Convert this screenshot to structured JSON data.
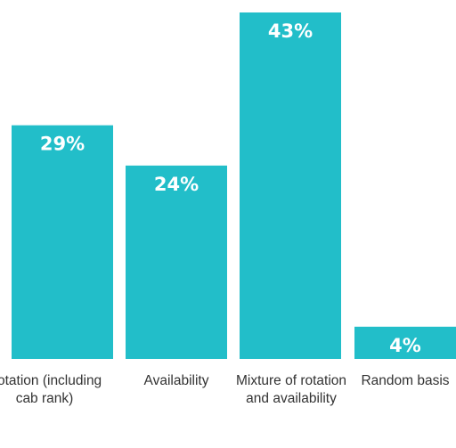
{
  "chart_data": {
    "type": "bar",
    "categories": [
      "Rotation (including cab rank)",
      "Availability",
      "Mixture of rotation and availability",
      "Random basis"
    ],
    "values": [
      29,
      24,
      43,
      4
    ],
    "value_labels": [
      "29%",
      "24%",
      "43%",
      "4%"
    ],
    "bar_color": "#22bec9",
    "ylim": [
      0,
      43
    ],
    "grid": false,
    "legend": "none"
  }
}
